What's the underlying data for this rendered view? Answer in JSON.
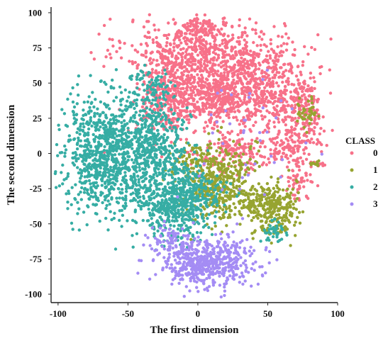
{
  "chart_data": {
    "type": "scatter",
    "title": "",
    "xlabel": "The first dimension",
    "ylabel": "The second dimension",
    "xlim": [
      -105,
      100
    ],
    "ylim": [
      -106,
      104
    ],
    "xticks": [
      -100,
      -50,
      0,
      50,
      100
    ],
    "yticks": [
      -100,
      -75,
      -50,
      -25,
      0,
      25,
      50,
      75,
      100
    ],
    "grid": false,
    "legend": {
      "title": "CLASS",
      "placement": "right"
    },
    "series": [
      {
        "name": "0",
        "color": "#f77189",
        "clusters": [
          {
            "cx": 5,
            "cy": 72,
            "sx": 28,
            "sy": 12,
            "n": 650
          },
          {
            "cx": 48,
            "cy": 45,
            "sx": 18,
            "sy": 16,
            "n": 500
          },
          {
            "cx": -20,
            "cy": 40,
            "sx": 12,
            "sy": 14,
            "n": 350
          },
          {
            "cx": 10,
            "cy": 40,
            "sx": 16,
            "sy": 10,
            "n": 400
          },
          {
            "cx": 0,
            "cy": 90,
            "sx": 7,
            "sy": 4,
            "n": 60
          },
          {
            "cx": 75,
            "cy": 28,
            "sx": 8,
            "sy": 10,
            "n": 150
          },
          {
            "cx": 65,
            "cy": 5,
            "sx": 10,
            "sy": 6,
            "n": 100
          },
          {
            "cx": 30,
            "cy": 0,
            "sx": 15,
            "sy": 7,
            "n": 150
          },
          {
            "cx": 70,
            "cy": -20,
            "sx": 5,
            "sy": 7,
            "n": 60
          },
          {
            "cx": 85,
            "cy": -7,
            "sx": 3,
            "sy": 1,
            "n": 12
          }
        ]
      },
      {
        "name": "1",
        "color": "#97a431",
        "clusters": [
          {
            "cx": 15,
            "cy": -20,
            "sx": 12,
            "sy": 14,
            "n": 450
          },
          {
            "cx": 55,
            "cy": -42,
            "sx": 8,
            "sy": 10,
            "n": 200
          },
          {
            "cx": 45,
            "cy": -33,
            "sx": 8,
            "sy": 5,
            "n": 100
          },
          {
            "cx": -5,
            "cy": -5,
            "sx": 6,
            "sy": 6,
            "n": 60
          },
          {
            "cx": 78,
            "cy": 28,
            "sx": 4,
            "sy": 5,
            "n": 40
          },
          {
            "cx": 85,
            "cy": -7,
            "sx": 3,
            "sy": 1,
            "n": 10
          }
        ]
      },
      {
        "name": "2",
        "color": "#36ada4",
        "clusters": [
          {
            "cx": -65,
            "cy": 0,
            "sx": 16,
            "sy": 20,
            "n": 900
          },
          {
            "cx": -30,
            "cy": 0,
            "sx": 12,
            "sy": 20,
            "n": 500
          },
          {
            "cx": -15,
            "cy": -38,
            "sx": 12,
            "sy": 12,
            "n": 400
          },
          {
            "cx": -35,
            "cy": 45,
            "sx": 8,
            "sy": 8,
            "n": 80
          },
          {
            "cx": 0,
            "cy": -25,
            "sx": 10,
            "sy": 8,
            "n": 120
          },
          {
            "cx": 55,
            "cy": -55,
            "sx": 5,
            "sy": 4,
            "n": 40
          }
        ]
      },
      {
        "name": "3",
        "color": "#a48cf4",
        "clusters": [
          {
            "cx": 5,
            "cy": -78,
            "sx": 18,
            "sy": 9,
            "n": 550
          },
          {
            "cx": -20,
            "cy": -60,
            "sx": 6,
            "sy": 6,
            "n": 50
          },
          {
            "cx": 30,
            "cy": 10,
            "sx": 20,
            "sy": 30,
            "n": 40
          }
        ]
      }
    ]
  }
}
